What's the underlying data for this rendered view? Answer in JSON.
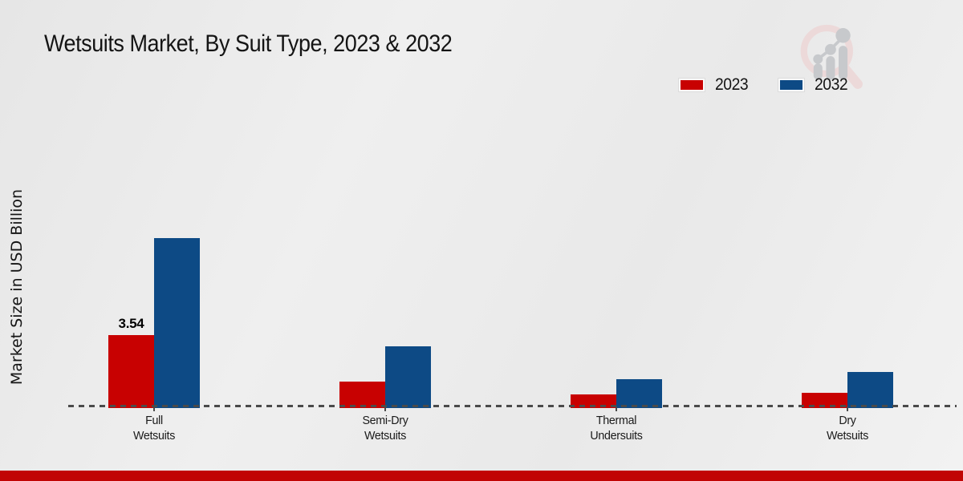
{
  "header": {
    "title": "Wetsuits Market, By Suit Type, 2023 & 2032"
  },
  "chart_data": {
    "type": "bar",
    "title": "Wetsuits Market, By Suit Type, 2023 & 2032",
    "xlabel": "",
    "ylabel": "Market Size in USD Billion",
    "categories": [
      "Full Wetsuits",
      "Semi-Dry Wetsuits",
      "Thermal Undersuits",
      "Dry Wetsuits"
    ],
    "category_lines": [
      [
        "Full",
        "Wetsuits"
      ],
      [
        "Semi-Dry",
        "Wetsuits"
      ],
      [
        "Thermal",
        "Undersuits"
      ],
      [
        "Dry",
        "Wetsuits"
      ]
    ],
    "series": [
      {
        "name": "2023",
        "color": "#c80101",
        "values": [
          3.54,
          1.22,
          0.58,
          0.68
        ],
        "data_labels": [
          "3.54",
          "",
          "",
          ""
        ]
      },
      {
        "name": "2032",
        "color": "#0d4a85",
        "values": [
          8.35,
          2.98,
          1.35,
          1.73
        ],
        "data_labels": [
          "",
          "",
          "",
          ""
        ]
      }
    ],
    "ylim": [
      0,
      9
    ],
    "y_axis_ticks_visible": false,
    "grid": false,
    "legend_position": "top-right",
    "baseline_style": "dashed"
  },
  "branding": {
    "logo": "magnifier-growth-chart-logo",
    "bottom_strip_color": "#c10404"
  }
}
